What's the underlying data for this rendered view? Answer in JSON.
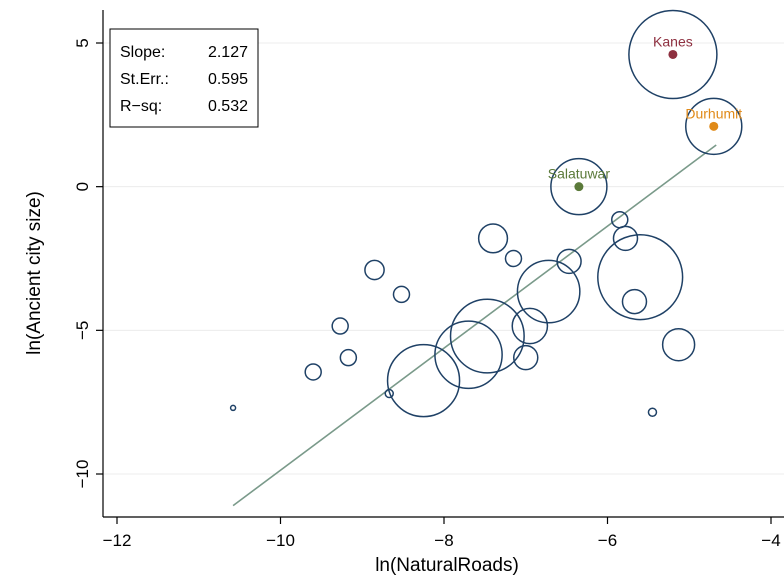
{
  "chart_data": {
    "type": "scatter",
    "xlabel": "ln(NaturalRoads)",
    "ylabel": "ln(Ancient city size)",
    "xlim": [
      -12.2,
      -3.95
    ],
    "ylim": [
      -11.7,
      5.5
    ],
    "xticks": [
      -12,
      -10,
      -8,
      -6,
      -4
    ],
    "xtick_labels": [
      "−12",
      "−10",
      "−8",
      "−6",
      "−4"
    ],
    "yticks": [
      -10,
      -5,
      0,
      5
    ],
    "ytick_labels": [
      "−10",
      "−5",
      "0",
      "5"
    ],
    "grid": "horizontal",
    "stats": {
      "slope_label": "Slope:",
      "slope_value": "2.127",
      "se_label": "St.Err.:",
      "se_value": "0.595",
      "rsq_label": "R−sq:",
      "rsq_value": "0.532"
    },
    "fit_line": {
      "x": [
        -10.58,
        -4.67
      ],
      "y": [
        -11.1,
        1.45
      ]
    },
    "points": [
      {
        "x": -5.2,
        "y": 4.6,
        "r": 5.5
      },
      {
        "x": -4.7,
        "y": 2.1,
        "r": 3.5
      },
      {
        "x": -6.35,
        "y": 0.0,
        "r": 3.5
      },
      {
        "x": -7.4,
        "y": -1.8,
        "r": 1.8
      },
      {
        "x": -7.15,
        "y": -2.5,
        "r": 1.0
      },
      {
        "x": -5.85,
        "y": -1.15,
        "r": 1.0
      },
      {
        "x": -5.78,
        "y": -1.8,
        "r": 1.5
      },
      {
        "x": -6.47,
        "y": -2.6,
        "r": 1.5
      },
      {
        "x": -5.6,
        "y": -3.15,
        "r": 5.3
      },
      {
        "x": -5.67,
        "y": -4.0,
        "r": 1.5
      },
      {
        "x": -6.72,
        "y": -3.65,
        "r": 3.9
      },
      {
        "x": -6.95,
        "y": -4.85,
        "r": 2.2
      },
      {
        "x": -7.47,
        "y": -5.2,
        "r": 4.6
      },
      {
        "x": -7.7,
        "y": -5.85,
        "r": 4.2
      },
      {
        "x": -8.25,
        "y": -6.75,
        "r": 4.5
      },
      {
        "x": -7.0,
        "y": -5.95,
        "r": 1.5
      },
      {
        "x": -5.13,
        "y": -5.5,
        "r": 2.0
      },
      {
        "x": -8.85,
        "y": -2.9,
        "r": 1.2
      },
      {
        "x": -8.52,
        "y": -3.75,
        "r": 1.0
      },
      {
        "x": -9.27,
        "y": -4.85,
        "r": 1.0
      },
      {
        "x": -9.17,
        "y": -5.95,
        "r": 1.0
      },
      {
        "x": -9.6,
        "y": -6.45,
        "r": 1.0
      },
      {
        "x": -8.67,
        "y": -7.2,
        "r": 0.5
      },
      {
        "x": -5.45,
        "y": -7.85,
        "r": 0.5
      },
      {
        "x": -10.58,
        "y": -7.7,
        "r": 0.3
      }
    ],
    "labeled_points": [
      {
        "name": "Kanes",
        "x": -5.2,
        "y": 4.6,
        "color": "#8e3040"
      },
      {
        "name": "Durhumit",
        "x": -4.7,
        "y": 2.1,
        "color": "#e08a19"
      },
      {
        "name": "Salatuwar",
        "x": -6.35,
        "y": 0.0,
        "color": "#5b7a3a"
      }
    ],
    "colors": {
      "bubble": "#1f4166",
      "fit_line": "#7a9a8a",
      "grid": "#ececec"
    }
  }
}
